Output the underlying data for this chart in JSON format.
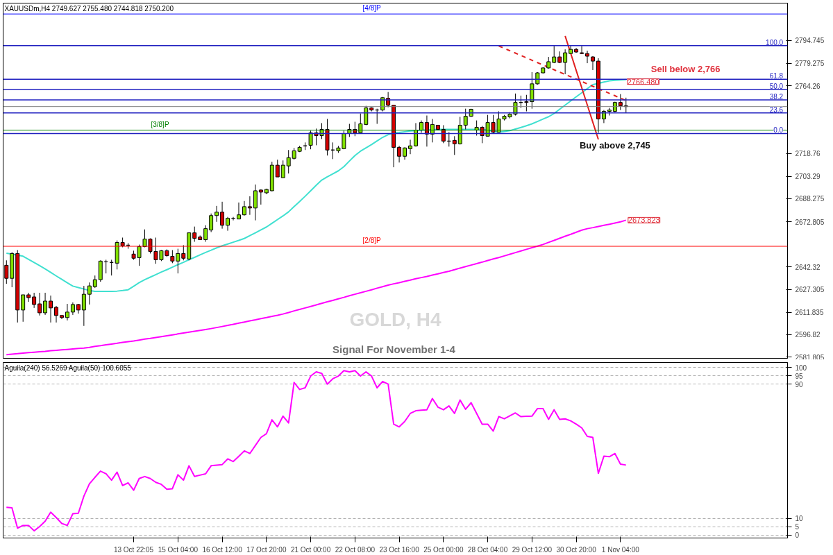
{
  "chart_data": [
    {
      "type": "candlestick",
      "title": "GOLD, H4",
      "subtitle": "Signal For  November 1-4",
      "annotations": [
        "XAUUSDm,H4  2749.627 2755.480 2744.818 2750.200",
        "Sell below 2,766",
        "Buy above 2,745",
        "2766.480",
        {
          "text": "100.0",
          "y": 2791.2
        },
        {
          "text": "61.8",
          "y": 2768.6
        },
        {
          "text": "50.0",
          "y": 2761.7
        },
        {
          "text": "38.2",
          "y": 2754.7
        },
        {
          "text": "23.6",
          "y": 2746.0
        },
        {
          "text": "0.0",
          "y": 2732.1
        }
      ],
      "categories": [
        null,
        null,
        null,
        null,
        null,
        null,
        null,
        null,
        null,
        null,
        null,
        null,
        null,
        null,
        null,
        null,
        null,
        null,
        null,
        null,
        null,
        null,
        null,
        null,
        null,
        null,
        null,
        null,
        null,
        null,
        null,
        null,
        null,
        null,
        null,
        null,
        null,
        null,
        null,
        null,
        null,
        null,
        null,
        null,
        null,
        null,
        null,
        null,
        null,
        null,
        null,
        null,
        null,
        null,
        null,
        null,
        null,
        null,
        null,
        null,
        null,
        null,
        null,
        null,
        null,
        null,
        null,
        null,
        null,
        null,
        null,
        null,
        null,
        null,
        null,
        null,
        null,
        null,
        null,
        null,
        null,
        null,
        null,
        null,
        null,
        null,
        null,
        null,
        null,
        null,
        null,
        null,
        null,
        null,
        null,
        null,
        null,
        null,
        null,
        null,
        null,
        null,
        null,
        null,
        null,
        null,
        null,
        null,
        null,
        null,
        null,
        null,
        null
      ],
      "ohlc": [
        [
          2643.5,
          2646.8,
          2631.0,
          2634.7
        ],
        [
          2634.7,
          2652.3,
          2628.7,
          2651.4
        ],
        [
          2651.4,
          2653.7,
          2605.0,
          2613.4
        ],
        [
          2613.4,
          2623.6,
          2605.5,
          2623.6
        ],
        [
          2623.6,
          2625.0,
          2618.9,
          2621.7
        ],
        [
          2622.2,
          2625.0,
          2614.8,
          2617.1
        ],
        [
          2617.5,
          2625.0,
          2609.7,
          2611.5
        ],
        [
          2611.5,
          2625.0,
          2610.1,
          2619.4
        ],
        [
          2619.4,
          2623.1,
          2605.0,
          2614.8
        ],
        [
          2615.2,
          2616.1,
          2605.0,
          2609.7
        ],
        [
          2609.7,
          2609.7,
          2607.3,
          2608.3
        ],
        [
          2608.3,
          2617.5,
          2606.4,
          2612.0
        ],
        [
          2612.0,
          2618.5,
          2610.1,
          2617.1
        ],
        [
          2617.1,
          2617.5,
          2611.0,
          2613.4
        ],
        [
          2613.4,
          2629.6,
          2602.7,
          2624.0
        ],
        [
          2624.0,
          2631.9,
          2617.1,
          2629.6
        ],
        [
          2629.1,
          2636.6,
          2628.2,
          2633.8
        ],
        [
          2633.8,
          2646.8,
          2632.4,
          2646.3
        ],
        [
          2645.8,
          2647.2,
          2638.0,
          2645.8
        ],
        [
          2645.4,
          2647.2,
          2636.6,
          2645.4
        ],
        [
          2644.9,
          2660.2,
          2640.7,
          2658.8
        ],
        [
          2658.8,
          2662.1,
          2655.6,
          2656.5
        ],
        [
          2657.0,
          2658.4,
          2654.6,
          2657.0
        ],
        [
          2651.0,
          2653.3,
          2647.2,
          2648.2
        ],
        [
          2648.6,
          2657.4,
          2643.1,
          2656.0
        ],
        [
          2656.0,
          2667.6,
          2655.6,
          2661.1
        ],
        [
          2661.1,
          2661.6,
          2651.4,
          2652.8
        ],
        [
          2652.8,
          2662.1,
          2644.5,
          2647.2
        ],
        [
          2647.2,
          2653.7,
          2646.3,
          2653.3
        ],
        [
          2653.3,
          2654.2,
          2649.1,
          2650.0
        ],
        [
          2649.5,
          2653.7,
          2644.9,
          2646.3
        ],
        [
          2646.3,
          2654.6,
          2638.0,
          2651.4
        ],
        [
          2651.4,
          2657.0,
          2646.8,
          2648.2
        ],
        [
          2647.7,
          2665.3,
          2646.8,
          2665.3
        ],
        [
          2665.3,
          2669.5,
          2659.3,
          2661.6
        ],
        [
          2662.5,
          2663.5,
          2660.7,
          2660.7
        ],
        [
          2660.7,
          2670.4,
          2659.3,
          2668.1
        ],
        [
          2667.2,
          2678.3,
          2665.8,
          2676.9
        ],
        [
          2676.9,
          2683.4,
          2672.7,
          2679.2
        ],
        [
          2679.2,
          2686.2,
          2668.1,
          2670.4
        ],
        [
          2670.4,
          2676.0,
          2666.7,
          2675.1
        ],
        [
          2675.1,
          2676.0,
          2673.7,
          2675.1
        ],
        [
          2674.6,
          2685.7,
          2674.6,
          2677.4
        ],
        [
          2677.4,
          2686.7,
          2676.9,
          2682.9
        ],
        [
          2682.9,
          2689.9,
          2677.4,
          2682.0
        ],
        [
          2682.0,
          2697.8,
          2673.7,
          2693.6
        ],
        [
          2694.1,
          2694.5,
          2684.3,
          2692.7
        ],
        [
          2692.2,
          2695.0,
          2691.3,
          2694.5
        ],
        [
          2693.6,
          2713.1,
          2693.2,
          2710.8
        ],
        [
          2710.8,
          2714.5,
          2702.9,
          2702.9
        ],
        [
          2702.4,
          2714.0,
          2702.4,
          2710.8
        ],
        [
          2710.3,
          2721.0,
          2705.2,
          2715.9
        ],
        [
          2715.4,
          2722.4,
          2714.5,
          2720.5
        ],
        [
          2720.1,
          2723.8,
          2719.6,
          2722.8
        ],
        [
          2723.8,
          2726.1,
          2721.0,
          2723.8
        ],
        [
          2724.2,
          2734.0,
          2721.5,
          2732.6
        ],
        [
          2732.6,
          2735.4,
          2724.2,
          2730.7
        ],
        [
          2730.7,
          2739.1,
          2728.4,
          2734.9
        ],
        [
          2734.9,
          2741.9,
          2717.3,
          2721.0
        ],
        [
          2721.0,
          2726.1,
          2714.9,
          2721.0
        ],
        [
          2720.5,
          2723.8,
          2719.1,
          2722.4
        ],
        [
          2721.9,
          2734.0,
          2721.5,
          2732.1
        ],
        [
          2732.1,
          2738.6,
          2729.8,
          2734.9
        ],
        [
          2734.9,
          2740.0,
          2730.3,
          2732.6
        ],
        [
          2732.6,
          2745.6,
          2732.6,
          2738.6
        ],
        [
          2738.2,
          2750.7,
          2737.7,
          2749.3
        ],
        [
          2749.3,
          2749.8,
          2747.0,
          2747.9
        ],
        [
          2747.9,
          2748.8,
          2738.6,
          2747.9
        ],
        [
          2747.9,
          2756.7,
          2747.0,
          2756.2
        ],
        [
          2755.8,
          2760.0,
          2749.8,
          2751.1
        ],
        [
          2751.1,
          2751.1,
          2709.4,
          2722.8
        ],
        [
          2722.8,
          2723.8,
          2712.6,
          2716.8
        ],
        [
          2716.8,
          2722.8,
          2714.5,
          2722.4
        ],
        [
          2721.9,
          2727.9,
          2718.2,
          2723.8
        ],
        [
          2723.8,
          2739.1,
          2723.3,
          2734.4
        ],
        [
          2734.4,
          2740.9,
          2732.6,
          2739.5
        ],
        [
          2739.5,
          2744.2,
          2723.3,
          2731.7
        ],
        [
          2731.7,
          2741.9,
          2726.1,
          2738.2
        ],
        [
          2737.7,
          2737.7,
          2734.4,
          2734.9
        ],
        [
          2734.9,
          2737.7,
          2725.6,
          2727.0
        ],
        [
          2727.0,
          2733.0,
          2723.3,
          2727.0
        ],
        [
          2727.5,
          2730.3,
          2717.7,
          2725.2
        ],
        [
          2725.2,
          2743.3,
          2724.7,
          2737.7
        ],
        [
          2737.7,
          2748.8,
          2734.9,
          2743.7
        ],
        [
          2743.7,
          2748.8,
          2743.3,
          2748.4
        ],
        [
          2734.4,
          2740.9,
          2730.7,
          2736.3
        ],
        [
          2736.3,
          2737.2,
          2725.6,
          2730.7
        ],
        [
          2730.3,
          2744.6,
          2730.3,
          2739.5
        ],
        [
          2739.5,
          2744.6,
          2732.1,
          2733.0
        ],
        [
          2733.0,
          2747.0,
          2733.0,
          2741.9
        ],
        [
          2741.9,
          2744.6,
          2740.9,
          2743.7
        ],
        [
          2743.3,
          2746.5,
          2742.3,
          2745.1
        ],
        [
          2745.1,
          2759.0,
          2744.2,
          2753.0
        ],
        [
          2753.0,
          2757.6,
          2749.3,
          2753.0
        ],
        [
          2753.5,
          2758.1,
          2747.0,
          2753.0
        ],
        [
          2753.5,
          2773.4,
          2748.8,
          2765.5
        ],
        [
          2765.5,
          2773.4,
          2765.0,
          2772.9
        ],
        [
          2772.9,
          2776.7,
          2772.5,
          2776.2
        ],
        [
          2776.2,
          2783.6,
          2775.7,
          2780.4
        ],
        [
          2779.9,
          2791.0,
          2779.4,
          2783.6
        ],
        [
          2783.6,
          2787.3,
          2779.4,
          2779.9
        ],
        [
          2779.9,
          2788.7,
          2772.0,
          2786.4
        ],
        [
          2785.9,
          2791.0,
          2785.5,
          2788.7
        ],
        [
          2788.7,
          2789.6,
          2786.4,
          2786.9
        ],
        [
          2786.4,
          2791.0,
          2785.5,
          2785.9
        ],
        [
          2785.9,
          2787.8,
          2779.4,
          2784.1
        ],
        [
          2783.6,
          2784.1,
          2774.8,
          2780.8
        ],
        [
          2780.8,
          2782.7,
          2732.6,
          2741.9
        ],
        [
          2741.9,
          2747.9,
          2739.1,
          2747.0
        ],
        [
          2747.0,
          2749.3,
          2744.2,
          2747.9
        ],
        [
          2747.0,
          2753.5,
          2746.5,
          2753.0
        ],
        [
          2753.0,
          2758.6,
          2747.9,
          2750.7
        ],
        [
          2750.7,
          2756.2,
          2746.0,
          2750.2
        ]
      ],
      "colors": [
        "#d40000",
        "#80e000",
        "#d40000",
        "#80e000",
        "#d40000",
        "#d40000",
        "#d40000",
        "#80e000",
        "#d40000",
        "#d40000",
        "#d40000",
        "#80e000",
        "#80e000",
        "#d40000",
        "#80e000",
        "#80e000",
        "#80e000",
        "#80e000",
        "#000000",
        "#000000",
        "#80e000",
        "#d40000",
        "#000000",
        "#d40000",
        "#80e000",
        "#80e000",
        "#d40000",
        "#d40000",
        "#80e000",
        "#d40000",
        "#d40000",
        "#80e000",
        "#d40000",
        "#80e000",
        "#d40000",
        "#d40000",
        "#80e000",
        "#80e000",
        "#80e000",
        "#d40000",
        "#80e000",
        "#000000",
        "#80e000",
        "#80e000",
        "#d40000",
        "#80e000",
        "#d40000",
        "#80e000",
        "#80e000",
        "#d40000",
        "#80e000",
        "#80e000",
        "#80e000",
        "#80e000",
        "#000000",
        "#80e000",
        "#d40000",
        "#80e000",
        "#d40000",
        "#000000",
        "#80e000",
        "#80e000",
        "#80e000",
        "#d40000",
        "#80e000",
        "#80e000",
        "#d40000",
        "#000000",
        "#80e000",
        "#d40000",
        "#d40000",
        "#d40000",
        "#80e000",
        "#80e000",
        "#80e000",
        "#80e000",
        "#d40000",
        "#80e000",
        "#d40000",
        "#d40000",
        "#000000",
        "#d40000",
        "#80e000",
        "#80e000",
        "#80e000",
        "#80e000",
        "#d40000",
        "#80e000",
        "#d40000",
        "#80e000",
        "#80e000",
        "#80e000",
        "#80e000",
        "#000000",
        "#d40000",
        "#80e000",
        "#80e000",
        "#80e000",
        "#80e000",
        "#80e000",
        "#d40000",
        "#80e000",
        "#80e000",
        "#d40000",
        "#d40000",
        "#d40000",
        "#d40000",
        "#d40000",
        "#80e000",
        "#80e000",
        "#80e000",
        "#d40000",
        "#d40000"
      ],
      "series": [
        {
          "type": "line",
          "color": "#40e0d0",
          "values": [
            2651.6,
            2651.0,
            2650.3,
            2649.6,
            2647.5,
            2645.3,
            2643.2,
            2641.0,
            2638.7,
            2636.3,
            2634.0,
            2631.7,
            2629.5,
            2628.5,
            2627.5,
            2626.5,
            2625.9,
            2625.9,
            2625.9,
            2625.9,
            2626.1,
            2626.5,
            2627.0,
            2629.4,
            2631.8,
            2633.8,
            2635.5,
            2637.2,
            2638.9,
            2640.5,
            2642.2,
            2643.9,
            2645.5,
            2647.2,
            2648.8,
            2650.5,
            2652.1,
            2653.6,
            2655.2,
            2656.6,
            2657.8,
            2659.0,
            2660.2,
            2661.5,
            2663.4,
            2665.3,
            2667.3,
            2669.2,
            2671.7,
            2674.2,
            2676.7,
            2679.4,
            2683.0,
            2686.4,
            2689.9,
            2693.6,
            2697.3,
            2700.8,
            2703.0,
            2705.0,
            2707.0,
            2709.8,
            2713.6,
            2717.3,
            2720.2,
            2722.5,
            2724.7,
            2727.1,
            2729.5,
            2731.3,
            2732.5,
            2732.8,
            2733.3,
            2733.8,
            2734.1,
            2734.3,
            2734.5,
            2734.7,
            2734.9,
            2734.9,
            2734.9,
            2734.9,
            2734.9,
            2734.9,
            2734.9,
            2734.9,
            2734.9,
            2734.3,
            2733.6,
            2733.0,
            2733.5,
            2734.0,
            2735.1,
            2736.2,
            2737.3,
            2738.6,
            2740.2,
            2741.8,
            2743.4,
            2745.6,
            2748.4,
            2751.2,
            2754.0,
            2756.8,
            2759.5,
            2762.3,
            2765.0,
            2765.8,
            2766.7,
            2767.5,
            2767.9,
            2768.1,
            2768.3
          ]
        },
        {
          "type": "line",
          "color": "#ff00ff",
          "values": [
            2583.4,
            2583.7,
            2584.0,
            2584.4,
            2584.7,
            2585.0,
            2585.3,
            2585.6,
            2586.0,
            2586.3,
            2586.6,
            2586.9,
            2587.2,
            2587.5,
            2587.8,
            2588.3,
            2588.9,
            2589.4,
            2590.0,
            2590.5,
            2591.0,
            2591.6,
            2592.1,
            2592.6,
            2593.2,
            2593.8,
            2594.3,
            2594.9,
            2595.5,
            2596.1,
            2596.7,
            2597.3,
            2597.9,
            2598.5,
            2599.1,
            2599.7,
            2600.3,
            2600.9,
            2601.6,
            2602.3,
            2603.1,
            2603.8,
            2604.6,
            2605.3,
            2606.1,
            2606.8,
            2607.6,
            2608.3,
            2609.1,
            2609.8,
            2610.7,
            2611.7,
            2612.8,
            2613.8,
            2614.8,
            2615.8,
            2616.8,
            2617.9,
            2618.9,
            2619.9,
            2620.9,
            2621.9,
            2623.0,
            2624.0,
            2625.0,
            2626.0,
            2627.0,
            2628.1,
            2629.1,
            2630.1,
            2631.0,
            2631.8,
            2632.7,
            2633.5,
            2634.4,
            2635.2,
            2636.0,
            2636.9,
            2637.7,
            2638.6,
            2639.5,
            2640.5,
            2641.6,
            2642.6,
            2643.6,
            2644.6,
            2645.6,
            2646.7,
            2647.7,
            2648.7,
            2649.8,
            2650.9,
            2652.0,
            2653.1,
            2654.2,
            2655.3,
            2656.4,
            2657.5,
            2658.9,
            2660.2,
            2661.6,
            2663.0,
            2664.3,
            2665.7,
            2667.1,
            2668.1,
            2668.8,
            2669.6,
            2670.4,
            2671.1,
            2671.9,
            2672.7,
            2673.823
          ],
          "value_labels": [
            null,
            null,
            null,
            null,
            null,
            null,
            null,
            null,
            null,
            null,
            null,
            null,
            null,
            null,
            null,
            null,
            null,
            null,
            null,
            null,
            null,
            null,
            null,
            null,
            null,
            null,
            null,
            null,
            null,
            null,
            null,
            null,
            null,
            null,
            null,
            null,
            null,
            null,
            null,
            null,
            null,
            null,
            null,
            null,
            null,
            null,
            null,
            null,
            null,
            null,
            null,
            null,
            null,
            null,
            null,
            null,
            null,
            null,
            null,
            null,
            null,
            null,
            null,
            null,
            null,
            null,
            null,
            null,
            null,
            null,
            null,
            null,
            null,
            null,
            null,
            null,
            null,
            null,
            null,
            null,
            null,
            null,
            null,
            null,
            null,
            null,
            null,
            null,
            null,
            null,
            null,
            null,
            null,
            null,
            null,
            null,
            null,
            null,
            null,
            null,
            null,
            null,
            null,
            null,
            null,
            null,
            null,
            null,
            null,
            null,
            null,
            null,
            "2673.823"
          ]
        },
        {
          "type": "line",
          "color": "#e02020",
          "line_style": "dashed",
          "values": [
            null,
            null,
            null,
            null,
            null,
            null,
            null,
            null,
            null,
            null,
            null,
            null,
            null,
            null,
            null,
            null,
            null,
            null,
            null,
            null,
            null,
            null,
            null,
            null,
            null,
            null,
            null,
            null,
            null,
            null,
            null,
            null,
            null,
            null,
            null,
            null,
            null,
            null,
            null,
            null,
            null,
            null,
            null,
            null,
            null,
            null,
            null,
            null,
            null,
            null,
            null,
            null,
            null,
            null,
            null,
            null,
            null,
            null,
            null,
            null,
            null,
            null,
            null,
            null,
            null,
            null,
            null,
            null,
            null,
            null,
            null,
            null,
            null,
            null,
            null,
            null,
            null,
            null,
            null,
            null,
            null,
            null,
            null,
            null,
            null,
            null,
            null,
            null,
            null,
            2791.0,
            2789.4,
            2787.8,
            2786.2,
            2784.6,
            2783.0,
            2781.4,
            2779.8,
            2778.2,
            2776.6,
            2775.0,
            2773.4,
            2771.8,
            2770.3,
            2768.7,
            2767.1,
            2765.5,
            2763.9,
            2762.3,
            2760.7,
            2759.1,
            2757.5,
            2755.9,
            2754.3
          ]
        },
        {
          "type": "line",
          "color": "#e02020",
          "values": [
            null,
            null,
            null,
            null,
            null,
            null,
            null,
            null,
            null,
            null,
            null,
            null,
            null,
            null,
            null,
            null,
            null,
            null,
            null,
            null,
            null,
            null,
            null,
            null,
            null,
            null,
            null,
            null,
            null,
            null,
            null,
            null,
            null,
            null,
            null,
            null,
            null,
            null,
            null,
            null,
            null,
            null,
            null,
            null,
            null,
            null,
            null,
            null,
            null,
            null,
            null,
            null,
            null,
            null,
            null,
            null,
            null,
            null,
            null,
            null,
            null,
            null,
            null,
            null,
            null,
            null,
            null,
            null,
            null,
            null,
            null,
            null,
            null,
            null,
            null,
            null,
            null,
            null,
            null,
            null,
            null,
            null,
            null,
            null,
            null,
            null,
            null,
            null,
            null,
            null,
            null,
            null,
            null,
            null,
            null,
            null,
            null,
            null,
            null,
            null,
            null,
            2797.7,
            2786.1,
            2774.5,
            2762.9,
            2751.3,
            2739.7,
            2728.1,
            null,
            null,
            null,
            null,
            null
          ]
        }
      ],
      "ref_lines": [
        {
          "axis": "y",
          "value": 2812.5,
          "label": "[4/8]P",
          "color": "#0000ff"
        },
        {
          "axis": "y",
          "value": 2656.25,
          "label": "[2/8]P",
          "color": "#ff0000"
        },
        {
          "axis": "y",
          "value": 2734.375,
          "label": "[3/8]P",
          "color": "#008000"
        },
        {
          "axis": "y",
          "value": 2750.2,
          "color": "#808080"
        },
        {
          "axis": "y",
          "value": 2791.2,
          "color": "#2020c0"
        },
        {
          "axis": "y",
          "value": 2768.6,
          "color": "#2020c0"
        },
        {
          "axis": "y",
          "value": 2761.7,
          "color": "#2020c0"
        },
        {
          "axis": "y",
          "value": 2754.7,
          "color": "#2020c0"
        },
        {
          "axis": "y",
          "value": 2746.0,
          "color": "#2020c0"
        },
        {
          "axis": "y",
          "value": 2732.1,
          "color": "#2020c0"
        }
      ],
      "ylim": [
        2580.9,
        2819.8
      ],
      "yticks": [
        2581.805,
        2596.82,
        2611.835,
        2627.305,
        2642.32,
        2672.805,
        2688.275,
        2703.29,
        2718.76,
        2764.26,
        2779.275,
        2794.745
      ],
      "tick_labels": "y"
    },
    {
      "type": "line",
      "annotations": [
        "Aguila(240) 56.5269  Aguila(50) 100.6055"
      ],
      "categories": [
        null,
        null,
        null,
        null,
        null,
        null,
        null,
        null,
        null,
        null,
        null,
        null,
        null,
        null,
        null,
        null,
        null,
        null,
        null,
        null,
        null,
        null,
        null,
        "13 Oct 22:05",
        null,
        null,
        null,
        null,
        null,
        null,
        null,
        "15 Oct 04:00",
        null,
        null,
        null,
        null,
        null,
        null,
        null,
        "16 Oct 12:00",
        null,
        null,
        null,
        null,
        null,
        null,
        null,
        "17 Oct 20:00",
        null,
        null,
        null,
        null,
        null,
        null,
        null,
        "21 Oct 00:00",
        null,
        null,
        null,
        null,
        null,
        null,
        null,
        "22 Oct 08:00",
        null,
        null,
        null,
        null,
        null,
        null,
        null,
        "23 Oct 16:00",
        null,
        null,
        null,
        null,
        null,
        null,
        null,
        "25 Oct 00:00",
        null,
        null,
        null,
        null,
        null,
        null,
        null,
        "28 Oct 04:00",
        null,
        null,
        null,
        null,
        null,
        null,
        null,
        "29 Oct 12:00",
        null,
        null,
        null,
        null,
        null,
        null,
        null,
        "30 Oct 20:00",
        null,
        null,
        null,
        null,
        null,
        null,
        null,
        "1 Nov 04:00",
        null
      ],
      "series": [
        {
          "color": "#ff00ff",
          "values": [
            16.6,
            16.3,
            4.2,
            5.8,
            5.8,
            2.6,
            5.1,
            8.3,
            13.7,
            10.5,
            7.0,
            5.8,
            12.8,
            13.1,
            23.3,
            30.6,
            34.5,
            38.2,
            36.6,
            32.8,
            37.6,
            29.6,
            31.2,
            26.8,
            33.8,
            35.0,
            33.8,
            31.5,
            30.3,
            27.4,
            27.7,
            36.0,
            32.8,
            41.4,
            35.0,
            35.8,
            36.6,
            41.4,
            41.8,
            42.1,
            45.5,
            43.9,
            47.0,
            50.3,
            48.7,
            53.5,
            58.3,
            60.5,
            68.8,
            64.6,
            71.0,
            66.9,
            91.1,
            86.9,
            87.9,
            94.9,
            97.4,
            96.5,
            90.1,
            93.3,
            94.9,
            98.1,
            97.4,
            98.1,
            94.9,
            97.4,
            94.9,
            87.9,
            91.7,
            90.1,
            66.2,
            64.6,
            67.8,
            72.6,
            74.2,
            74.5,
            74.8,
            81.5,
            76.4,
            74.8,
            77.1,
            72.6,
            80.6,
            75.1,
            79.0,
            72.6,
            66.2,
            66.2,
            62.1,
            70.7,
            69.4,
            71.2,
            72.9,
            70.7,
            70.9,
            71.0,
            75.5,
            75.5,
            69.1,
            74.8,
            69.1,
            69.4,
            68.2,
            66.2,
            64.0,
            58.9,
            58.3,
            36.9,
            47.1,
            46.8,
            48.7,
            42.4,
            41.8
          ]
        }
      ],
      "ylim": [
        -1.7,
        103
      ],
      "yticks": [
        0,
        5,
        10,
        90,
        95,
        100
      ],
      "grid": "y"
    }
  ]
}
